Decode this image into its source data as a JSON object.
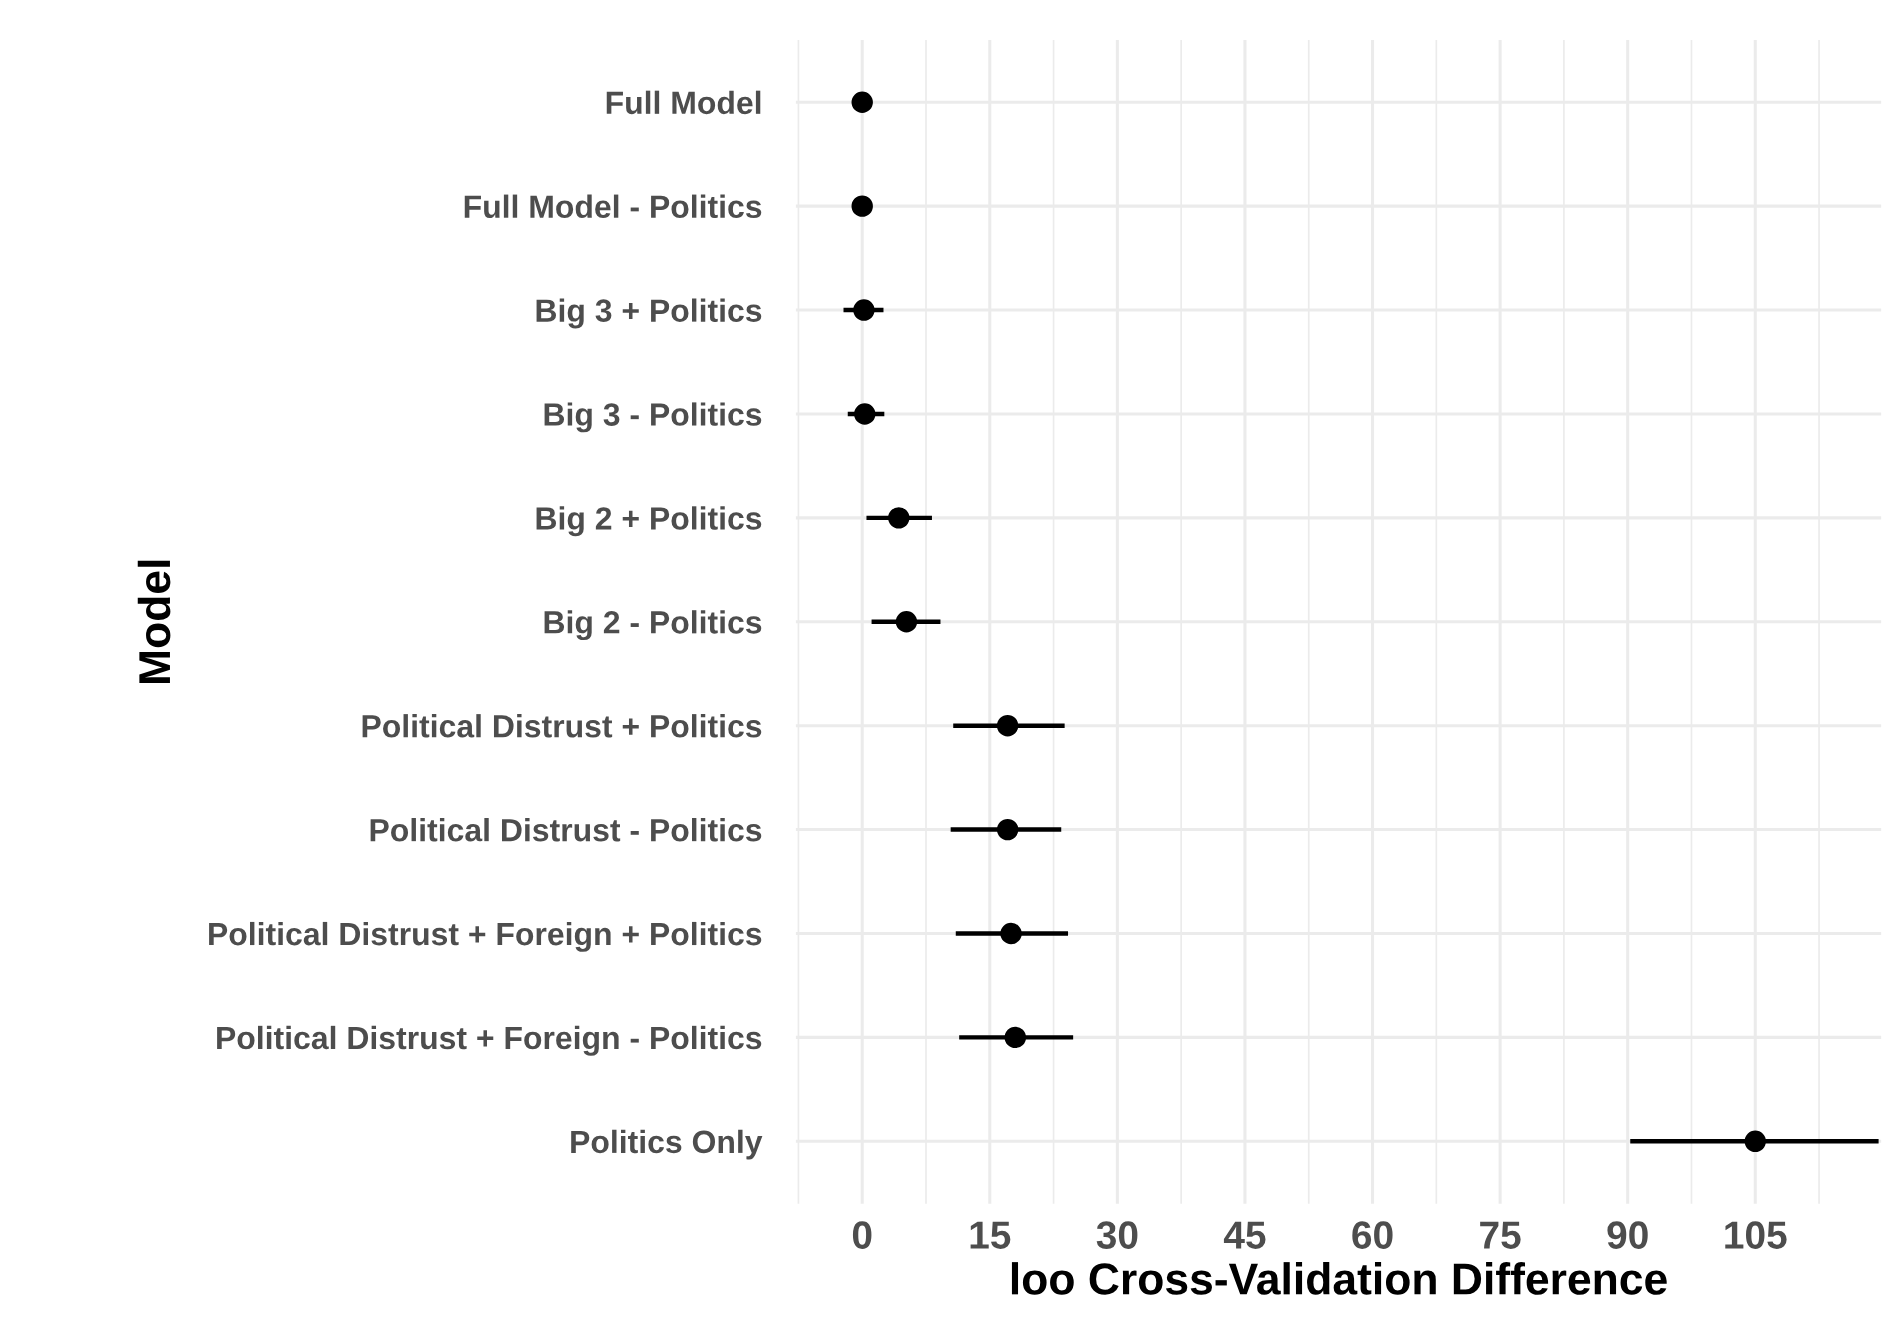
{
  "chart_data": {
    "type": "scatter",
    "orientation": "horizontal",
    "xlabel": "loo Cross-Validation Difference",
    "ylabel": "Model",
    "categories": [
      "Full Model",
      "Full Model - Politics",
      "Big 3 + Politics",
      "Big 3 - Politics",
      "Big 2 + Politics",
      "Big 2 - Politics",
      "Political Distrust + Politics",
      "Political Distrust - Politics",
      "Political Distrust + Foreign + Politics",
      "Political Distrust + Foreign - Politics",
      "Politics Only"
    ],
    "values": [
      0,
      0,
      0.2,
      0.3,
      4.3,
      5.2,
      17.1,
      17.1,
      17.5,
      18.0,
      105.0
    ],
    "errors": [
      null,
      null,
      [
        -2.2,
        2.5
      ],
      [
        -1.7,
        2.6
      ],
      [
        0.5,
        8.2
      ],
      [
        1.1,
        9.2
      ],
      [
        10.7,
        23.8
      ],
      [
        10.4,
        23.4
      ],
      [
        11.0,
        24.2
      ],
      [
        11.4,
        24.8
      ],
      [
        90.3,
        119.5
      ]
    ],
    "color": "#000000",
    "marker": "circle",
    "grid": true,
    "xlim": [
      -7.8,
      119.8
    ],
    "xticks": [
      0,
      15,
      30,
      45,
      60,
      75,
      90,
      105,
      {
        "value": -7.5,
        "label": null
      },
      {
        "value": 7.5,
        "label": null
      },
      {
        "value": 22.5,
        "label": null
      },
      {
        "value": 37.5,
        "label": null
      },
      {
        "value": 52.5,
        "label": null
      },
      {
        "value": 67.5,
        "label": null
      },
      {
        "value": 82.5,
        "label": null
      },
      {
        "value": 97.5,
        "label": null
      },
      {
        "value": 112.5,
        "label": null
      }
    ]
  }
}
